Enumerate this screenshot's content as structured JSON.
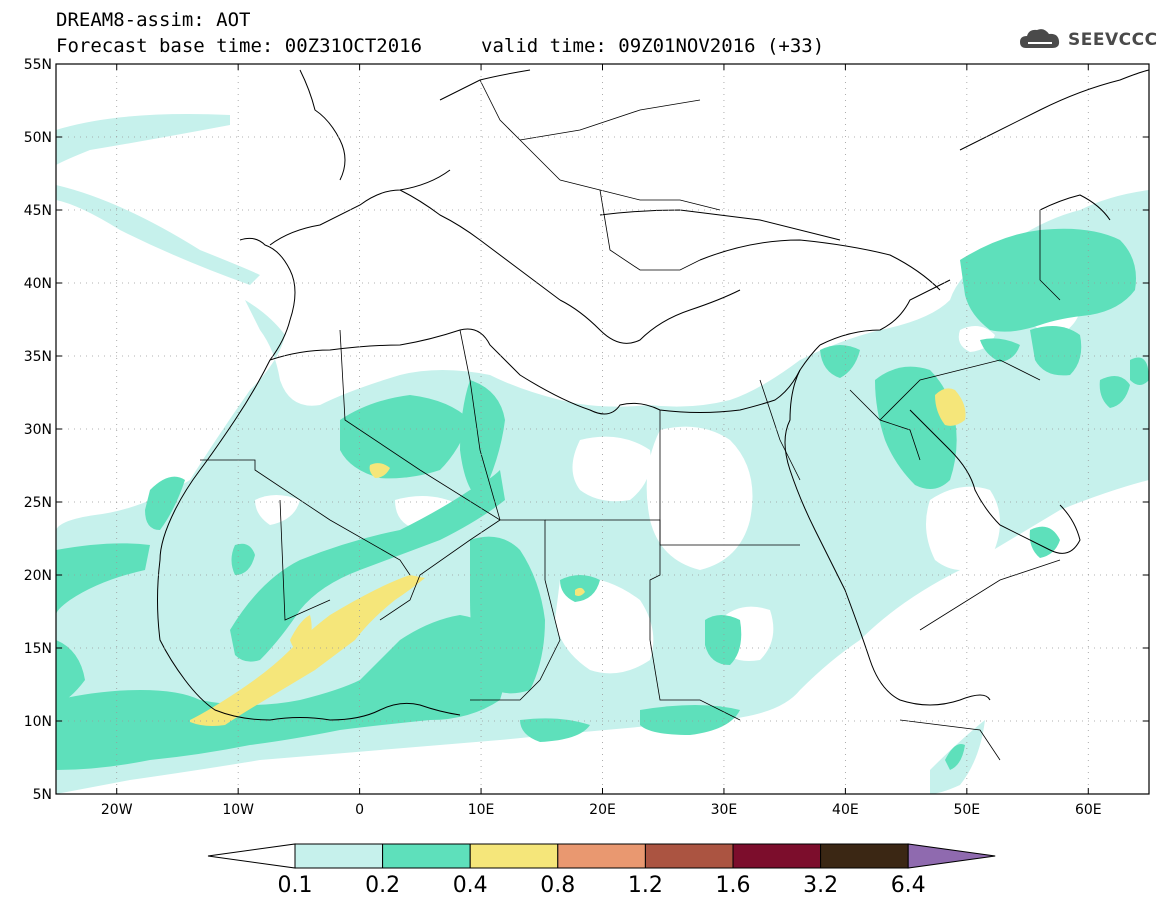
{
  "header": {
    "title": "DREAM8-assim: AOT",
    "base_time": "Forecast base time: 00Z31OCT2016",
    "valid_time": "valid time: 09Z01NOV2016 (+33)"
  },
  "logo": {
    "text": "SEEVCCC",
    "icon": "cloud-icon"
  },
  "map": {
    "lat_labels": [
      "55N",
      "50N",
      "45N",
      "40N",
      "35N",
      "30N",
      "25N",
      "20N",
      "15N",
      "10N",
      "5N"
    ],
    "lon_labels": [
      "20W",
      "10W",
      "0",
      "10E",
      "20E",
      "30E",
      "40E",
      "50E",
      "60E"
    ],
    "extent": {
      "lon_min": -25,
      "lon_max": 65,
      "lat_min": 5,
      "lat_max": 55
    }
  },
  "colorbar": {
    "labels": [
      "0.1",
      "0.2",
      "0.4",
      "0.8",
      "1.2",
      "1.6",
      "3.2",
      "6.4"
    ],
    "colors": [
      "#c6f1ec",
      "#5ee0bb",
      "#f5e67a",
      "#e99870",
      "#ab5441",
      "#7c0d2c",
      "#3b2714",
      "#8f6aaf"
    ]
  },
  "colors": {
    "aot_01": "#c6f1ec",
    "aot_02": "#5ee0bb",
    "aot_04": "#f5e67a",
    "land_border": "#000000",
    "background": "#ffffff"
  }
}
